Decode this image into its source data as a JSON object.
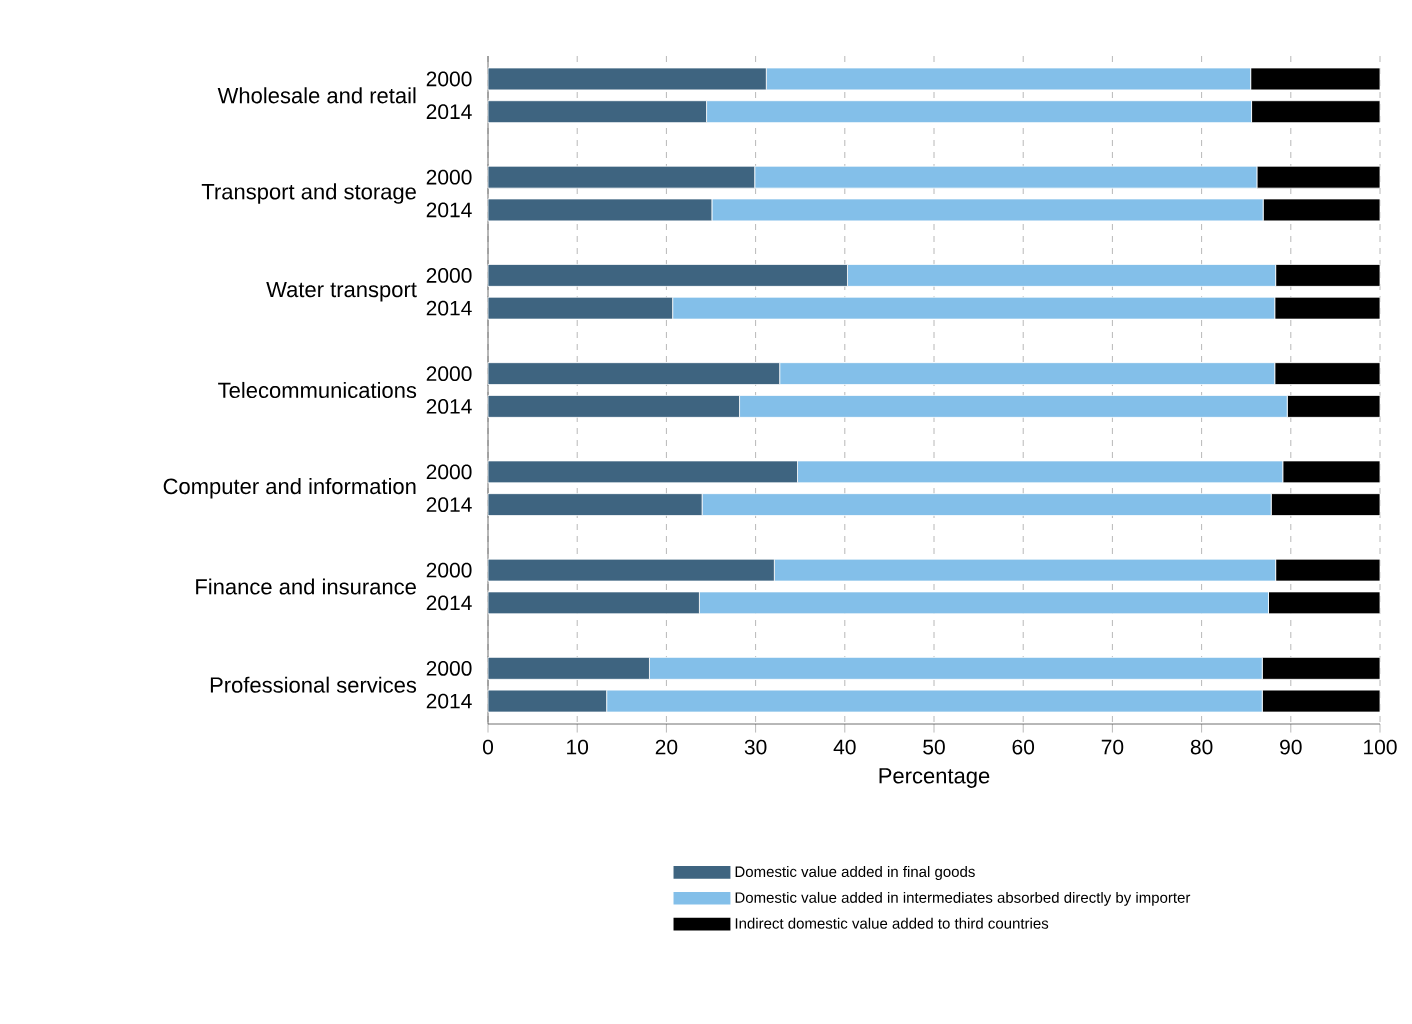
{
  "chart_data": {
    "type": "bar",
    "orientation": "horizontal",
    "stacked": true,
    "xlabel": "Percentage",
    "categories": [
      "2000",
      "2014",
      "2000",
      "2014",
      "2000",
      "2014",
      "2000",
      "2014",
      "2000",
      "2014",
      "2000",
      "2014",
      "2000",
      "2014"
    ],
    "annotations": [
      "Wholesale and retail",
      "Transport and storage",
      "Water transport",
      "Telecommunications",
      "Computer and information",
      "Finance and insurance",
      "Professional services"
    ],
    "series": [
      {
        "name": "Domestic value added in final goods",
        "color": "#3e6480",
        "values": [
          31.2,
          24.5,
          29.9,
          25.1,
          40.3,
          20.7,
          32.7,
          28.2,
          34.7,
          24.0,
          32.1,
          23.7,
          18.1,
          13.3
        ]
      },
      {
        "name": "Domestic value added in intermediates absorbed directly by importer",
        "color": "#83bfe9",
        "values": [
          54.3,
          61.1,
          56.3,
          61.8,
          48.0,
          67.5,
          55.5,
          61.4,
          54.4,
          63.8,
          56.2,
          63.8,
          68.7,
          73.5
        ]
      },
      {
        "name": "Indirect domestic value added to third countries",
        "color": "#000000",
        "values": [
          14.5,
          14.4,
          13.8,
          13.1,
          11.7,
          11.8,
          11.8,
          10.4,
          10.9,
          12.2,
          11.7,
          12.5,
          13.2,
          13.2
        ]
      }
    ],
    "xlim": [
      0,
      100
    ],
    "xticks": [
      0,
      10,
      20,
      30,
      40,
      50,
      60,
      70,
      80,
      90,
      100
    ],
    "grid": "x",
    "legend": "bottom"
  }
}
